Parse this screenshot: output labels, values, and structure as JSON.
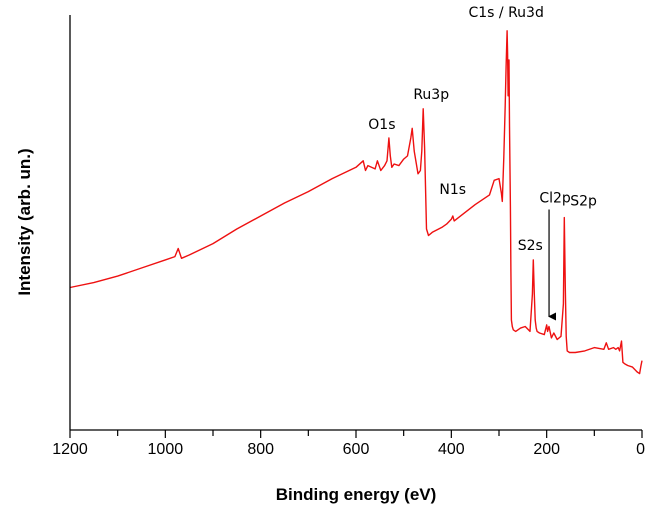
{
  "chart_data": {
    "type": "line",
    "title": "",
    "xlabel": "Binding energy (eV)",
    "ylabel": "Intensity (arb. un.)",
    "xlim": [
      1200,
      0
    ],
    "x_reversed": true,
    "ylim": [
      0,
      100
    ],
    "y_ticks_shown": false,
    "grid": false,
    "legend": "none",
    "xticks": [
      1200,
      1000,
      800,
      600,
      400,
      200,
      0
    ],
    "xtick_labels": [
      "1200",
      "1000",
      "800",
      "600",
      "400",
      "200",
      "0"
    ],
    "series": [
      {
        "color": "#ee1111",
        "x": [
          1200,
          1150,
          1100,
          1050,
          1000,
          980,
          973,
          966,
          950,
          900,
          850,
          800,
          750,
          700,
          650,
          600,
          585,
          580,
          575,
          560,
          555,
          548,
          540,
          535,
          531,
          528,
          525,
          520,
          510,
          500,
          492,
          485,
          482,
          478,
          470,
          465,
          462,
          459,
          456,
          452,
          448,
          440,
          420,
          410,
          400,
          397,
          394,
          385,
          350,
          320,
          310,
          300,
          295,
          293,
          290,
          287,
          285,
          283,
          282,
          281,
          280,
          279,
          278,
          276,
          275,
          274,
          272,
          270,
          265,
          255,
          245,
          235,
          230,
          228,
          226,
          224,
          222,
          220,
          215,
          205,
          200,
          198,
          195,
          190,
          185,
          178,
          170,
          165,
          163,
          161,
          159,
          157,
          152,
          140,
          120,
          100,
          80,
          75,
          70,
          60,
          55,
          50,
          47,
          43,
          40,
          36,
          30,
          20,
          10,
          5,
          2,
          0
        ],
        "y": [
          30.0,
          31.5,
          33.5,
          36.0,
          38.5,
          39.5,
          42.0,
          39.0,
          40.0,
          43.5,
          48.0,
          52.0,
          56.0,
          59.5,
          63.5,
          67.0,
          69.0,
          66.0,
          67.5,
          66.5,
          69.0,
          66.0,
          67.5,
          69.0,
          76.0,
          70.5,
          67.0,
          68.0,
          67.5,
          69.5,
          70.5,
          76.0,
          79.0,
          72.0,
          65.0,
          66.0,
          72.0,
          85.0,
          73.0,
          48.0,
          46.0,
          47.0,
          48.5,
          49.5,
          51.0,
          52.0,
          50.5,
          51.5,
          55.5,
          58.5,
          63.0,
          63.5,
          59.0,
          56.5,
          70.0,
          86.0,
          98.0,
          109.0,
          102.0,
          89.0,
          97.0,
          100.0,
          80.0,
          55.0,
          35.0,
          20.0,
          18.0,
          17.0,
          16.5,
          17.5,
          18.0,
          16.5,
          28.0,
          38.5,
          28.0,
          20.0,
          17.5,
          16.5,
          16.0,
          15.5,
          18.5,
          16.5,
          18.0,
          14.5,
          16.0,
          14.0,
          15.0,
          25.0,
          51.5,
          30.0,
          15.0,
          10.5,
          10.0,
          10.0,
          10.5,
          11.5,
          11.0,
          13.0,
          11.0,
          11.5,
          11.0,
          11.5,
          10.5,
          13.5,
          7.0,
          6.5,
          6.0,
          5.5,
          4.0,
          3.5,
          6.0,
          7.5
        ]
      }
    ],
    "annotations": [
      {
        "text": "C1s / Ru3d",
        "x": 285,
        "y": 109
      },
      {
        "text": "Ru3p",
        "x": 459,
        "y": 85
      },
      {
        "text": "O1s",
        "x": 531,
        "y": 76
      },
      {
        "text": "N1s",
        "x": 397,
        "y": 52
      },
      {
        "text": "Cl2p",
        "x": 195,
        "y": 18,
        "arrow": true
      },
      {
        "text": "S2s",
        "x": 226,
        "y": 38.5
      },
      {
        "text": "S2p",
        "x": 161,
        "y": 51.5
      }
    ]
  }
}
